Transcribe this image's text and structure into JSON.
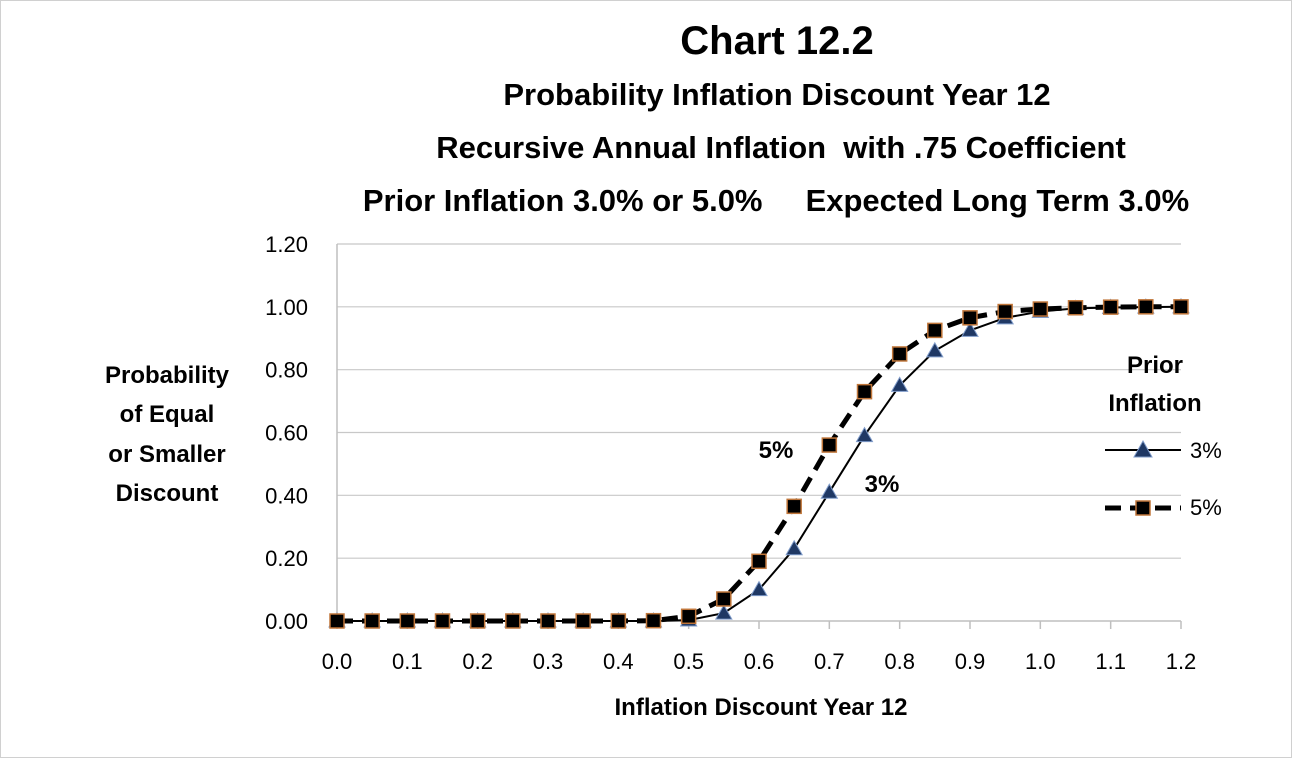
{
  "chart_data": {
    "type": "line",
    "title": "Chart 12.2",
    "subtitles": [
      "Probability Inflation Discount Year 12",
      "Recursive Annual Inflation  with .75 Coefficient",
      "Prior Inflation 3.0% or 5.0%     Expected Long Term 3.0%"
    ],
    "xlabel": "Inflation Discount Year 12",
    "ylabel_lines": [
      "Probability",
      "of Equal",
      "or Smaller",
      "Discount"
    ],
    "xlim": [
      0,
      1.2
    ],
    "ylim": [
      0,
      1.2
    ],
    "xticks": [
      "0.0",
      "0.1",
      "0.2",
      "0.3",
      "0.4",
      "0.5",
      "0.6",
      "0.7",
      "0.8",
      "0.9",
      "1.0",
      "1.1",
      "1.2"
    ],
    "yticks": [
      "0.00",
      "0.20",
      "0.40",
      "0.60",
      "0.80",
      "1.00",
      "1.20"
    ],
    "grid": "horizontal",
    "legend_title_lines": [
      "Prior",
      "Inflation"
    ],
    "legend_position": "right",
    "annotations": [
      {
        "text": "5%",
        "x": 0.655,
        "y": 0.54
      },
      {
        "text": "3%",
        "x": 0.755,
        "y": 0.43
      }
    ],
    "x": [
      0,
      0.05,
      0.1,
      0.15,
      0.2,
      0.25,
      0.3,
      0.35,
      0.4,
      0.45,
      0.5,
      0.55,
      0.6,
      0.65,
      0.7,
      0.75,
      0.8,
      0.85,
      0.9,
      0.95,
      1.0,
      1.05,
      1.1,
      1.15,
      1.2
    ],
    "series": [
      {
        "name": "3%",
        "values": [
          0,
          0,
          0,
          0,
          0,
          0,
          0,
          0,
          0,
          0,
          0.003,
          0.025,
          0.1,
          0.23,
          0.41,
          0.59,
          0.75,
          0.86,
          0.925,
          0.965,
          0.985,
          0.995,
          0.998,
          0.999,
          1.0
        ],
        "line": "solid",
        "marker": "triangle",
        "color": "#000000",
        "marker_fill": "#1f3864"
      },
      {
        "name": "5%",
        "values": [
          0,
          0,
          0,
          0,
          0,
          0,
          0,
          0,
          0,
          0.001,
          0.015,
          0.07,
          0.19,
          0.365,
          0.56,
          0.73,
          0.85,
          0.925,
          0.965,
          0.985,
          0.993,
          0.997,
          0.999,
          1.0,
          1.0
        ],
        "line": "dashed",
        "marker": "square",
        "color": "#000000",
        "marker_fill": "#000000",
        "marker_edge": "#c0763a"
      }
    ]
  }
}
